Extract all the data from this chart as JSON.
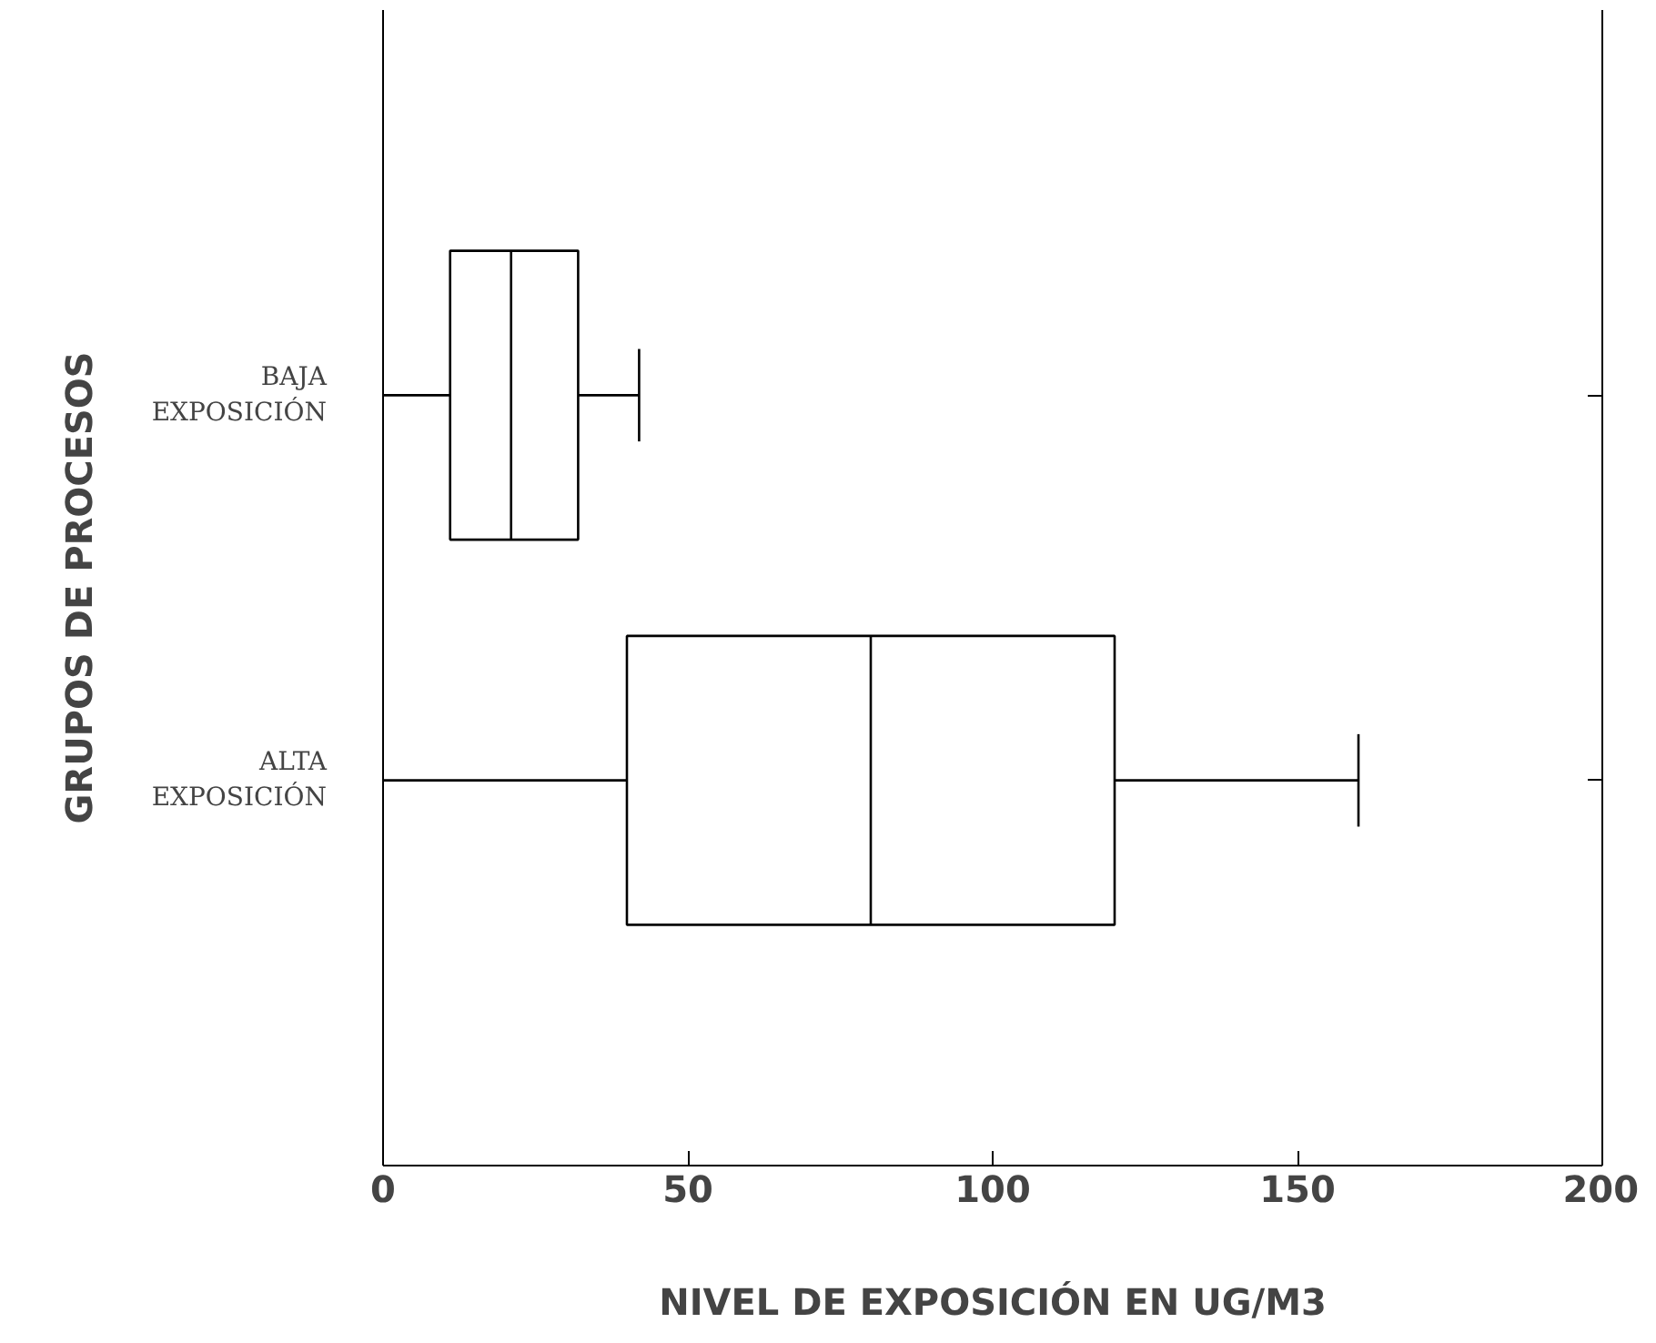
{
  "chart_data": {
    "type": "box",
    "orientation": "horizontal",
    "categories": [
      "BAJA\nEXPOSICIÓN",
      "ALTA\nEXPOSICIÓN"
    ],
    "boxes": [
      {
        "low": 0,
        "q1": 11,
        "median": 21,
        "q3": 32,
        "high": 42
      },
      {
        "low": 0,
        "q1": 40,
        "median": 80,
        "q3": 120,
        "high": 160
      }
    ],
    "xlabel": "NIVEL DE EXPOSICIÓN EN UG/M3",
    "ylabel": "GRUPOS DE PROCESOS",
    "xlim": [
      0,
      200
    ],
    "xticks": [
      0,
      50,
      100,
      150,
      200
    ],
    "grid": false
  }
}
